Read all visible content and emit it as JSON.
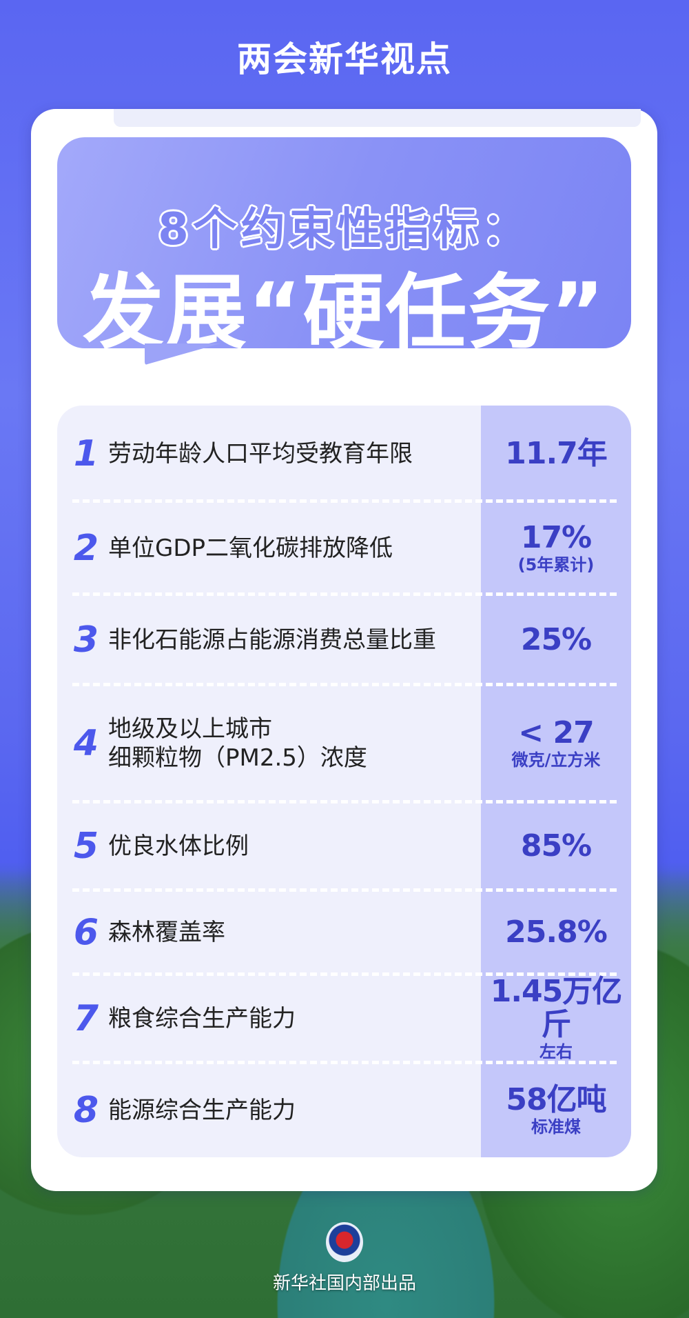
{
  "header": {
    "title": "两会新华视点"
  },
  "hero": {
    "line1": "8个约束性指标：",
    "line2": "发展“硬任务”"
  },
  "indicators": [
    {
      "num": "1",
      "label": "劳动年龄人口平均受教育年限",
      "value": "11.7年",
      "sub": ""
    },
    {
      "num": "2",
      "label": "单位GDP二氧化碳排放降低",
      "value": "17%",
      "sub": "(5年累计)"
    },
    {
      "num": "3",
      "label": "非化石能源占能源消费总量比重",
      "value": "25%",
      "sub": ""
    },
    {
      "num": "4",
      "label": "地级及以上城市\n细颗粒物（PM2.5）浓度",
      "value": "< 27",
      "sub": "微克/立方米"
    },
    {
      "num": "5",
      "label": "优良水体比例",
      "value": "85%",
      "sub": ""
    },
    {
      "num": "6",
      "label": "森林覆盖率",
      "value": "25.8%",
      "sub": ""
    },
    {
      "num": "7",
      "label": "粮食综合生产能力",
      "value": "1.45万亿斤",
      "sub": "左右"
    },
    {
      "num": "8",
      "label": "能源综合生产能力",
      "value": "58亿吨",
      "sub": "标准煤"
    }
  ],
  "footer": {
    "logo": "Xinhua",
    "text": "新华社国内部出品"
  },
  "colors": {
    "accent": "#4c58ec",
    "value_text": "#3a3fc4",
    "value_column": "#c4c7fa",
    "table_bg": "#eff0fc"
  }
}
